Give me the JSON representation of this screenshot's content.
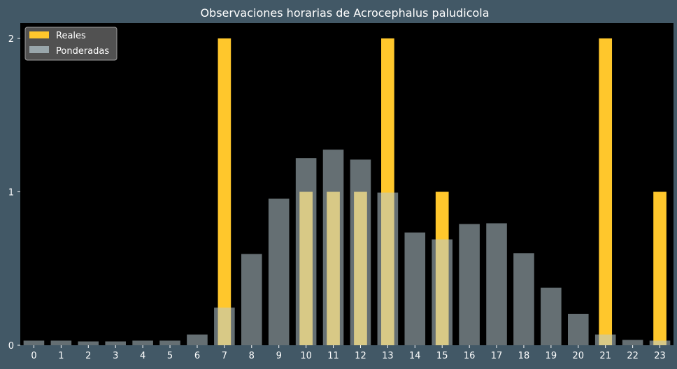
{
  "chart_data": {
    "type": "bar",
    "title": "Observaciones horarias de Acrocephalus paludicola",
    "xlabel": "",
    "ylabel": "",
    "ylim": [
      0,
      2.1
    ],
    "yticks": [
      0,
      1,
      2
    ],
    "categories": [
      "0",
      "1",
      "2",
      "3",
      "4",
      "5",
      "6",
      "7",
      "8",
      "9",
      "10",
      "11",
      "12",
      "13",
      "14",
      "15",
      "16",
      "17",
      "18",
      "19",
      "20",
      "21",
      "22",
      "23"
    ],
    "series": [
      {
        "name": "Reales",
        "color": "#ffc72c",
        "values": [
          0,
          0,
          0,
          0,
          0,
          0,
          0,
          2,
          0,
          0,
          1,
          1,
          1,
          2,
          0,
          1,
          0,
          0,
          0,
          0,
          0,
          2,
          0,
          1
        ]
      },
      {
        "name": "Ponderadas",
        "color": "#b8cbd1",
        "values": [
          0.03,
          0.03,
          0.025,
          0.025,
          0.03,
          0.03,
          0.07,
          0.245,
          0.595,
          0.955,
          1.22,
          1.275,
          1.21,
          0.995,
          0.735,
          0.69,
          0.79,
          0.795,
          0.6,
          0.375,
          0.205,
          0.07,
          0.035,
          0.03
        ]
      }
    ],
    "legend_position": "top-left",
    "grid": false
  },
  "colors": {
    "background": "#425866",
    "plot_area": "#000000",
    "text": "#ffffff"
  }
}
